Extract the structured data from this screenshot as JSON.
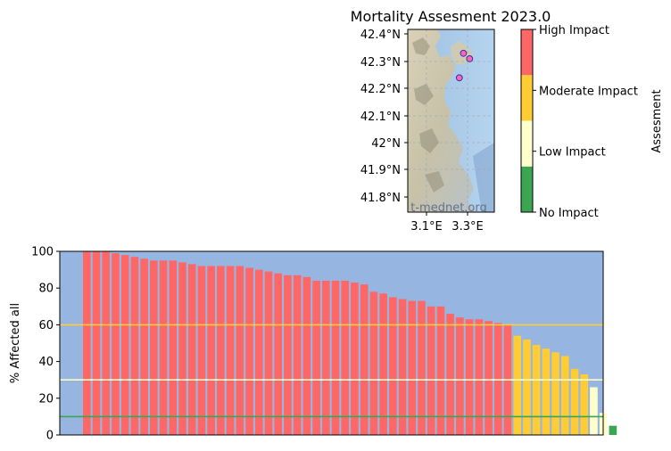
{
  "map": {
    "title": "Mortality Assesment 2023.0",
    "lat_ticks": [
      "42.4°N",
      "42.3°N",
      "42.2°N",
      "42.1°N",
      "42°N",
      "41.9°N",
      "41.8°N"
    ],
    "lon_ticks": [
      "3.1°E",
      "3.3°E"
    ],
    "watermark": "t-mednet.org",
    "sites": [
      {
        "lon": 3.28,
        "lat": 42.33
      },
      {
        "lon": 3.31,
        "lat": 42.31
      },
      {
        "lon": 3.26,
        "lat": 42.24
      }
    ]
  },
  "colorbar": {
    "label": "Assesment",
    "levels": [
      "No Impact",
      "Low Impact",
      "Moderate Impact",
      "High Impact"
    ],
    "colors": [
      "#3aa651",
      "#ffffcc",
      "#ffcc33",
      "#ff6666"
    ]
  },
  "chart_data": {
    "type": "bar",
    "title": "Mortality Assesment 2023.0",
    "xlabel": "",
    "ylabel": "% Affected all",
    "ylim": [
      0,
      100
    ],
    "yticks": [
      0,
      20,
      40,
      60,
      80,
      100
    ],
    "background": "#96b6e1",
    "values": [
      100,
      100,
      100,
      99,
      98,
      97,
      96,
      95,
      95,
      95,
      94,
      93,
      92,
      92,
      92,
      92,
      92,
      91,
      90,
      89,
      88,
      87,
      87,
      86,
      84,
      84,
      84,
      84,
      83,
      82,
      78,
      77,
      75,
      74,
      73,
      73,
      70,
      70,
      66,
      64,
      63,
      63,
      62,
      61,
      60,
      54,
      52,
      49,
      47,
      45,
      43,
      36,
      33,
      26,
      12,
      5
    ],
    "category_colors": {
      "high": "#ff6666",
      "moderate": "#ffcc33",
      "low": "#ffffcc",
      "none": "#3aa651"
    },
    "thresholds": [
      {
        "value": 60,
        "color": "#ffcc33"
      },
      {
        "value": 30,
        "color": "#ffffcc"
      },
      {
        "value": 10,
        "color": "#3aa651"
      }
    ]
  }
}
